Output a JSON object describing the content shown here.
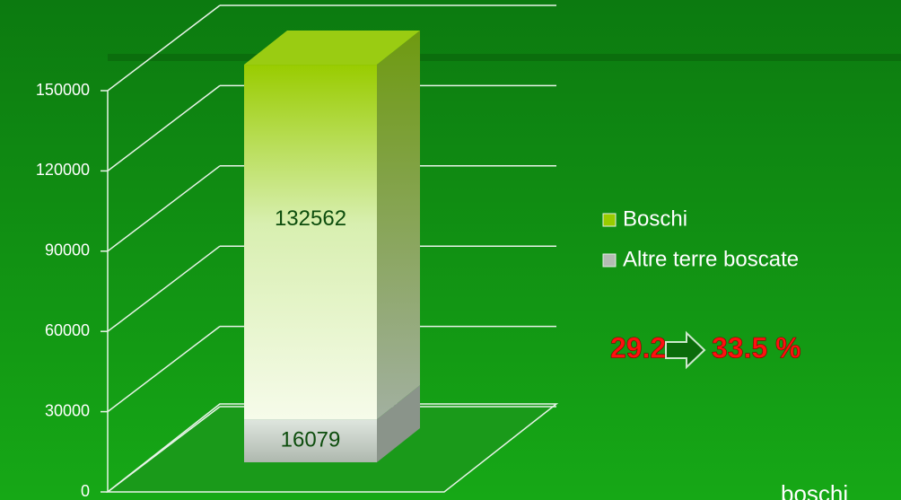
{
  "chart_data": {
    "type": "bar",
    "stacked": true,
    "categories": [
      null
    ],
    "series": [
      {
        "name": "Altre terre boscate",
        "color": "#b4bcb4",
        "values": [
          16079
        ]
      },
      {
        "name": "Boschi",
        "color": "#99cc00",
        "values": [
          132562
        ]
      }
    ],
    "ylim": [
      0,
      150000
    ],
    "yticks": [
      0,
      30000,
      60000,
      90000,
      120000,
      150000
    ],
    "grid": true,
    "legend": "right",
    "annotations": [
      "29.2",
      "33.5 %",
      "boschi"
    ]
  }
}
